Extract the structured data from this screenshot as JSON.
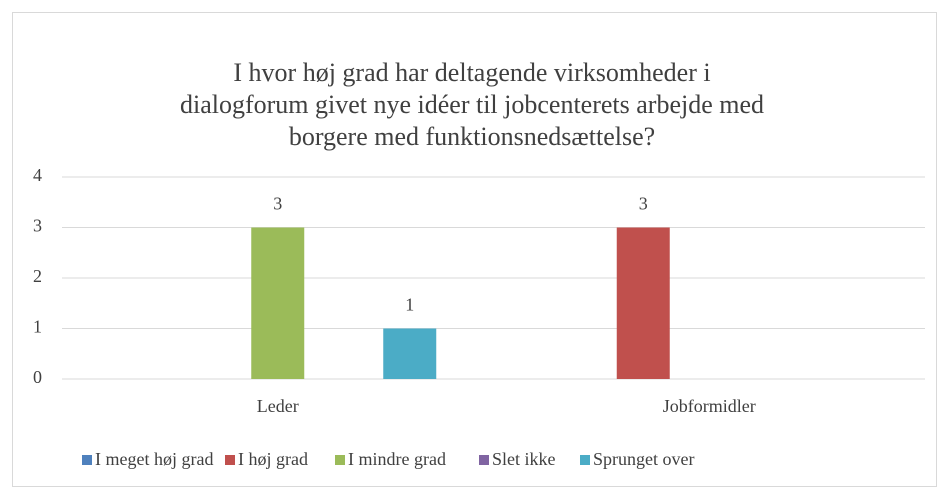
{
  "chart_data": {
    "type": "bar",
    "title": [
      "I hvor høj grad har deltagende virksomheder i",
      "dialogforum givet nye idéer til jobcenterets arbejde med",
      "borgere med funktionsnedsættelse?"
    ],
    "categories": [
      "Leder",
      "Jobformidler"
    ],
    "series": [
      {
        "name": "I meget høj grad",
        "color": "#4f81bd",
        "values": [
          null,
          null
        ]
      },
      {
        "name": "I høj grad",
        "color": "#c0504d",
        "values": [
          null,
          3
        ]
      },
      {
        "name": "I mindre grad",
        "color": "#9bbb59",
        "values": [
          3,
          null
        ]
      },
      {
        "name": "Slet ikke",
        "color": "#8064a2",
        "values": [
          null,
          null
        ]
      },
      {
        "name": "Sprunget over",
        "color": "#4bacc6",
        "values": [
          1,
          null
        ]
      }
    ],
    "ylim": [
      0,
      4
    ],
    "yticks": [
      0,
      1,
      2,
      3,
      4
    ],
    "grid": true,
    "legend": "bottom"
  }
}
